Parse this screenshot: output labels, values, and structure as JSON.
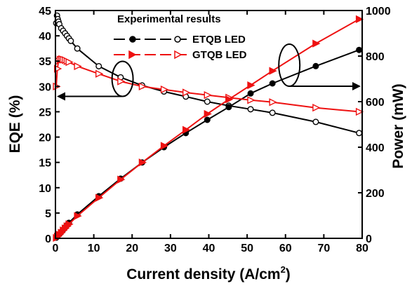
{
  "chart_data": {
    "type": "line",
    "title": "",
    "legend_title": "Experimental results",
    "legend_position": "top-center",
    "xlabel": "Current density (A/cm",
    "xlabel_sup": "2",
    "xlabel_close": ")",
    "ylabel": "EQE (%)",
    "y2label": "Power (mW)",
    "xlim": [
      0,
      80
    ],
    "ylim": [
      0,
      45
    ],
    "y2lim": [
      0,
      1000
    ],
    "x_ticks": [
      "0",
      "10",
      "20",
      "30",
      "40",
      "50",
      "60",
      "70",
      "80"
    ],
    "y_ticks": [
      "0",
      "5",
      "10",
      "15",
      "20",
      "25",
      "30",
      "35",
      "40",
      "45"
    ],
    "y2_ticks": [
      "0",
      "200",
      "400",
      "600",
      "800",
      "1000"
    ],
    "grid": false,
    "colors": {
      "etqb": "#000000",
      "gtqb": "#ee1111"
    },
    "series": [
      {
        "name": "ETQB LED",
        "quantity": "EQE",
        "axis": "left",
        "marker": "circle-open",
        "color": "#000000",
        "x": [
          0.2,
          0.4,
          0.6,
          0.8,
          1.0,
          1.5,
          2.0,
          2.5,
          3.0,
          3.5,
          4.0,
          5.7,
          11.3,
          17.0,
          22.6,
          28.3,
          34.0,
          39.6,
          45.2,
          50.9,
          56.6,
          67.9,
          79.2
        ],
        "y": [
          42.5,
          44.0,
          43.3,
          42.8,
          42.3,
          41.5,
          41.0,
          40.5,
          40.0,
          39.5,
          39.0,
          37.5,
          34.0,
          31.8,
          30.2,
          29.0,
          28.0,
          27.0,
          26.2,
          25.5,
          24.8,
          23.0,
          20.8
        ]
      },
      {
        "name": "ETQB LED",
        "quantity": "Power",
        "axis": "right",
        "marker": "circle-filled",
        "color": "#000000",
        "x": [
          0.2,
          0.5,
          1.0,
          1.5,
          2.0,
          2.5,
          3.0,
          3.5,
          5.7,
          11.3,
          17.0,
          22.6,
          28.3,
          34.0,
          39.6,
          45.2,
          50.9,
          56.6,
          67.9,
          79.2
        ],
        "y": [
          3,
          9,
          18,
          28,
          38,
          48,
          58,
          68,
          105,
          185,
          262,
          333,
          400,
          462,
          520,
          576,
          636,
          680,
          756,
          827
        ]
      },
      {
        "name": "GTQB LED",
        "quantity": "EQE",
        "axis": "left",
        "marker": "triangle-open",
        "color": "#ee1111",
        "x": [
          0.2,
          0.5,
          0.8,
          1.2,
          1.6,
          2.0,
          2.5,
          3.0,
          3.5,
          5.7,
          11.3,
          17.0,
          22.6,
          28.3,
          34.0,
          39.6,
          45.2,
          50.9,
          56.6,
          67.9,
          79.2
        ],
        "y": [
          30.0,
          33.5,
          35.0,
          35.3,
          35.4,
          35.3,
          35.2,
          35.0,
          34.8,
          34.0,
          32.5,
          31.0,
          30.0,
          29.4,
          28.8,
          28.3,
          27.8,
          27.3,
          26.9,
          25.8,
          25.0
        ]
      },
      {
        "name": "GTQB LED",
        "quantity": "Power",
        "axis": "right",
        "marker": "triangle-filled",
        "color": "#ee1111",
        "x": [
          0.2,
          0.5,
          1.0,
          1.5,
          2.0,
          2.5,
          3.0,
          3.5,
          5.7,
          11.3,
          17.0,
          22.6,
          28.3,
          34.0,
          39.6,
          45.2,
          50.9,
          56.6,
          67.9,
          79.2
        ],
        "y": [
          2,
          8,
          16,
          25,
          35,
          44,
          53,
          62,
          98,
          178,
          258,
          333,
          406,
          476,
          546,
          610,
          672,
          735,
          855,
          962
        ]
      }
    ]
  }
}
